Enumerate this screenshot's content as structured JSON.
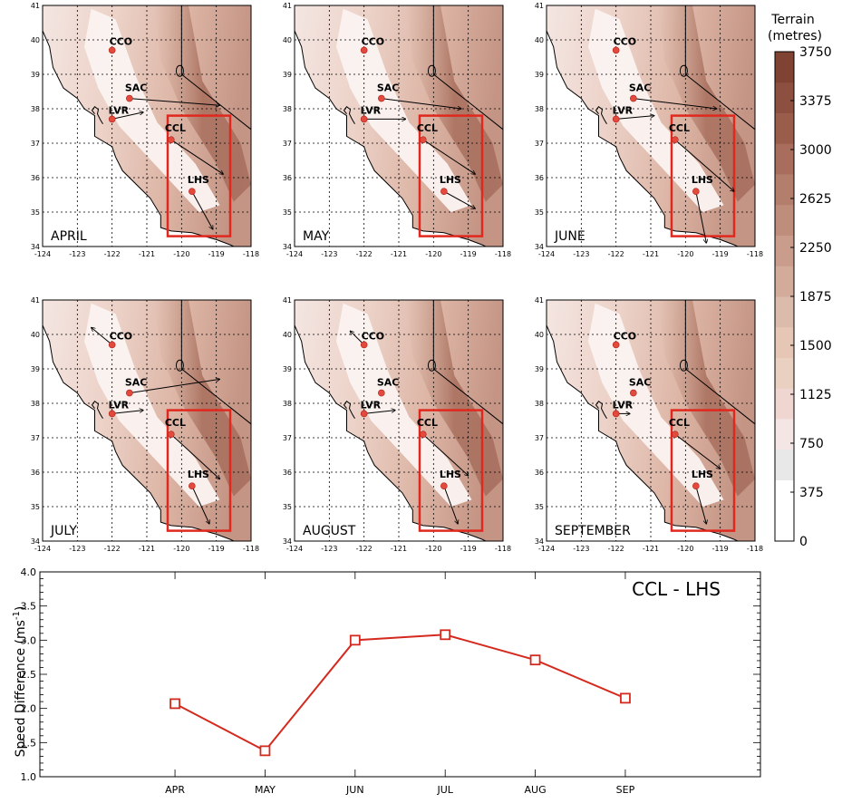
{
  "colorbar": {
    "title_line1": "Terrain",
    "title_line2": "(metres)",
    "ticks": [
      "3750",
      "3375",
      "3000",
      "2625",
      "2250",
      "1875",
      "1500",
      "1125",
      "750",
      "375",
      "0"
    ],
    "colors": [
      "#ffffff",
      "#ffffff",
      "#e8e8e8",
      "#f5e6e6",
      "#efd6d0",
      "#ead0c0",
      "#e6c7b5",
      "#dbbcac",
      "#d2ab9a",
      "#c99c8b",
      "#bf8d7c",
      "#b47e6c",
      "#a86d5c",
      "#9a5d4c",
      "#8d4f40",
      "#7f4233"
    ]
  },
  "maps": {
    "x_ticks": [
      "-124",
      "-123",
      "-122",
      "-121",
      "-120",
      "-119",
      "-118"
    ],
    "y_ticks": [
      "41",
      "40",
      "39",
      "38",
      "37",
      "36",
      "35",
      "34"
    ],
    "sites": [
      "CCO",
      "SAC",
      "LVR",
      "CCL",
      "LHS"
    ],
    "panels": [
      {
        "month": "APRIL",
        "winds": {
          "CCO": null,
          "SAC": [
            2.6,
            -0.2
          ],
          "LVR": [
            0.9,
            0.2
          ],
          "CCL": [
            1.5,
            -1.0
          ],
          "LHS": [
            0.6,
            -1.1
          ]
        }
      },
      {
        "month": "MAY",
        "winds": {
          "CCO": null,
          "SAC": [
            2.3,
            -0.3
          ],
          "LVR": [
            1.2,
            0.0
          ],
          "CCL": [
            1.5,
            -1.0
          ],
          "LHS": [
            0.9,
            -0.5
          ]
        }
      },
      {
        "month": "JUNE",
        "winds": {
          "CCO": null,
          "SAC": [
            2.4,
            -0.3
          ],
          "LVR": [
            1.1,
            0.1
          ],
          "CCL": [
            1.7,
            -1.5
          ],
          "LHS": [
            0.3,
            -1.5
          ]
        }
      },
      {
        "month": "JULY",
        "winds": {
          "CCO": [
            -0.6,
            0.5
          ],
          "SAC": [
            2.6,
            0.4
          ],
          "LVR": [
            0.9,
            0.1
          ],
          "CCL": [
            1.4,
            -1.3
          ],
          "LHS": [
            0.5,
            -1.1
          ]
        }
      },
      {
        "month": "AUGUST",
        "winds": {
          "CCO": [
            -0.4,
            0.4
          ],
          "SAC": null,
          "LVR": [
            0.9,
            0.1
          ],
          "CCL": [
            1.3,
            -1.2
          ],
          "LHS": [
            0.4,
            -1.1
          ]
        }
      },
      {
        "month": "SEPTEMBER",
        "winds": {
          "CCO": null,
          "SAC": null,
          "LVR": [
            0.4,
            0.0
          ],
          "CCL": [
            1.3,
            -1.0
          ],
          "LHS": [
            0.3,
            -1.1
          ]
        }
      }
    ]
  },
  "chart_data": {
    "type": "line",
    "title": "CCL - LHS",
    "ylabel": "Speed Difference (ms",
    "ylabel_sup": "-1",
    "ylabel_end": ")",
    "categories": [
      "APR",
      "MAY",
      "JUN",
      "JUL",
      "AUG",
      "SEP"
    ],
    "values": [
      2.07,
      1.38,
      3.0,
      3.08,
      2.71,
      2.15
    ],
    "ylim": [
      1.0,
      4.0
    ],
    "yticks": [
      "1.0",
      "1.5",
      "2.0",
      "2.5",
      "3.0",
      "3.5",
      "4.0"
    ],
    "line_color": "#d42a1e"
  }
}
